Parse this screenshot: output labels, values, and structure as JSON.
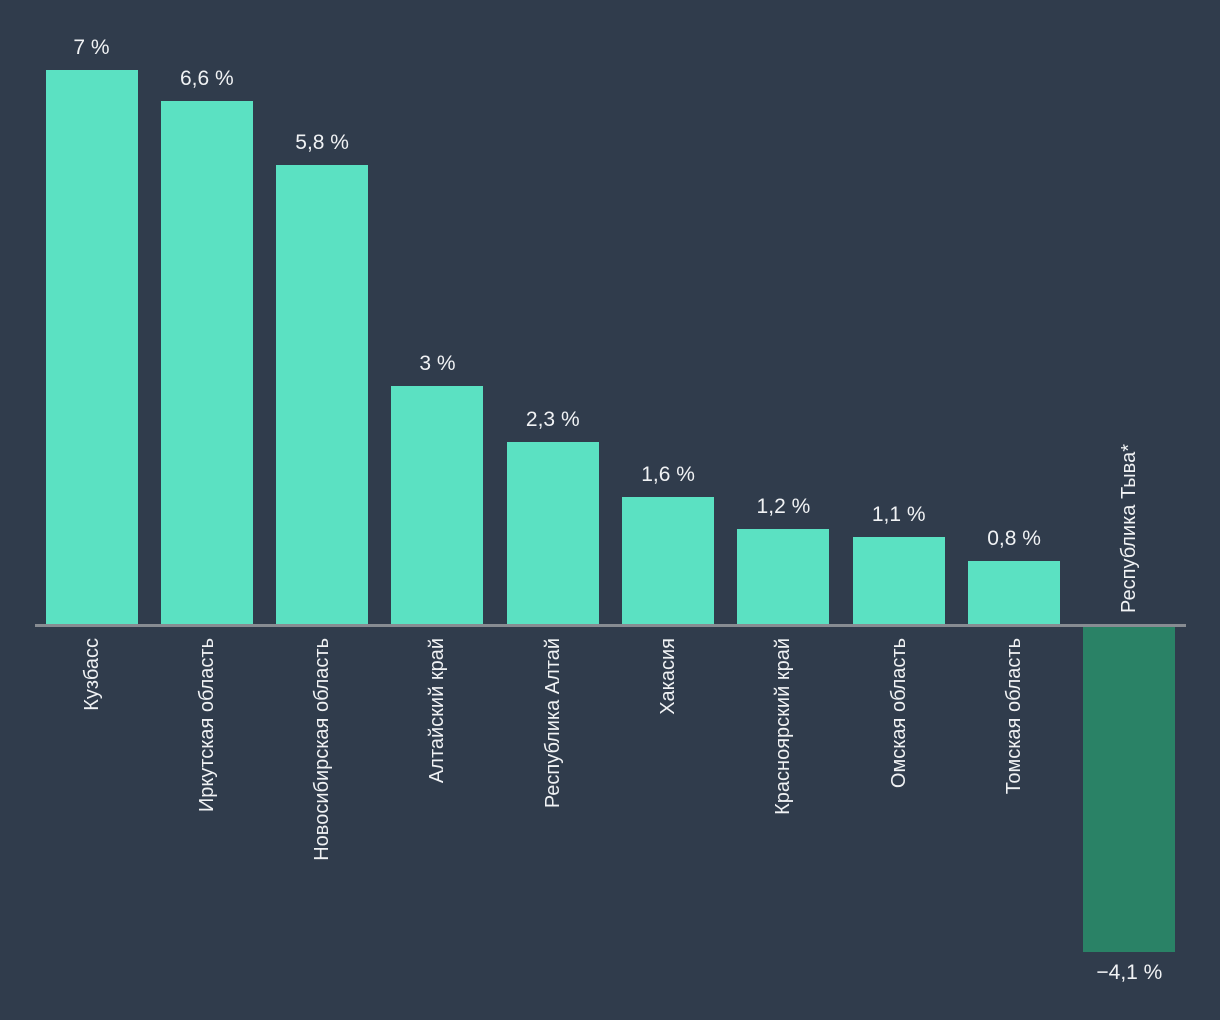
{
  "chart_data": {
    "type": "bar",
    "categories": [
      "Кузбасс",
      "Иркутская область",
      "Новосибирская область",
      "Алтайский край",
      "Республика Алтай",
      "Хакасия",
      "Красноярский край",
      "Омская область",
      "Томская область",
      "Республика Тыва*"
    ],
    "values": [
      7,
      6.6,
      5.8,
      3,
      2.3,
      1.6,
      1.2,
      1.1,
      0.8,
      -4.1
    ],
    "value_labels": [
      "7 %",
      "6,6 %",
      "5,8 %",
      "3 %",
      "2,3 %",
      "1,6 %",
      "1,2 %",
      "1,1 %",
      "0,8 %",
      "−4,1 %"
    ],
    "title": "",
    "xlabel": "",
    "ylabel": "",
    "ylim": [
      -4.5,
      7.5
    ],
    "grid": false,
    "legend": null,
    "value_label_position": "outside-end",
    "category_label_rotation": -90,
    "colors": {
      "positive_bar": "#5be1c2",
      "negative_bar": "#2a8266",
      "background": "#303c4c",
      "axis_line": "#878c92",
      "label_text": "#f0f2f4"
    }
  }
}
